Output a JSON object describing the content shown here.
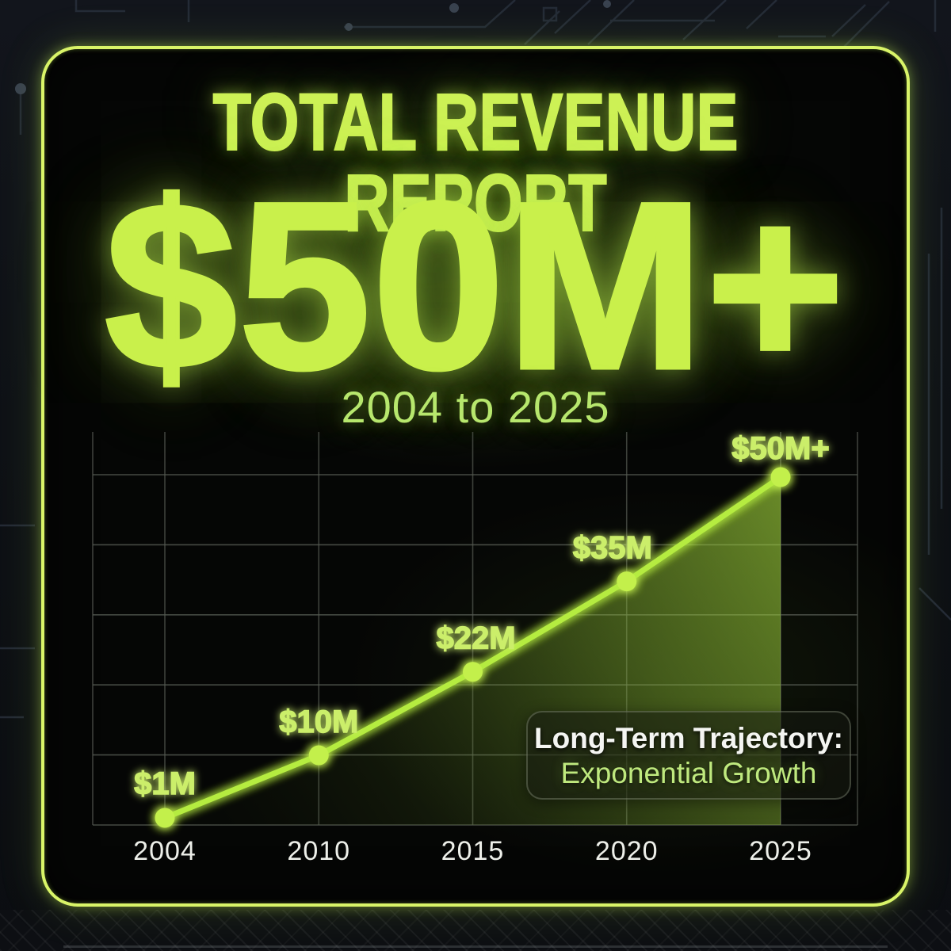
{
  "header": {
    "title": "TOTAL REVENUE REPORT",
    "hero_value": "$50M+",
    "subtitle": "2004 to 2025"
  },
  "callout": {
    "line1": "Long-Term Trajectory:",
    "line2": "Exponential Growth"
  },
  "colors": {
    "accent": "#cdf155",
    "line": "#b5ec41",
    "point": "#c3f04c",
    "point_label": "#cbee6b",
    "subtitle": "#b7e76d",
    "axis_text": "#edefe9",
    "grid": "#565b53",
    "card_border": "#d9f468",
    "area_top": "#a8dd3f",
    "area_bottom": "#3a5316",
    "callout_title": "#f4f5f2",
    "callout_subtitle": "#bfe97e",
    "background": "#12151c",
    "card_background": "#050605"
  },
  "chart_data": {
    "type": "area",
    "categories": [
      "2004",
      "2010",
      "2015",
      "2020",
      "2025"
    ],
    "values": [
      1,
      10,
      22,
      35,
      50
    ],
    "point_labels": [
      "$1M",
      "$10M",
      "$22M",
      "$35M",
      "$50M+"
    ],
    "title": "",
    "xlabel": "",
    "ylabel": "",
    "ylim": [
      1,
      50
    ],
    "grid": true,
    "legend_position": "none",
    "annotation": "Long-Term Trajectory: Exponential Growth"
  }
}
